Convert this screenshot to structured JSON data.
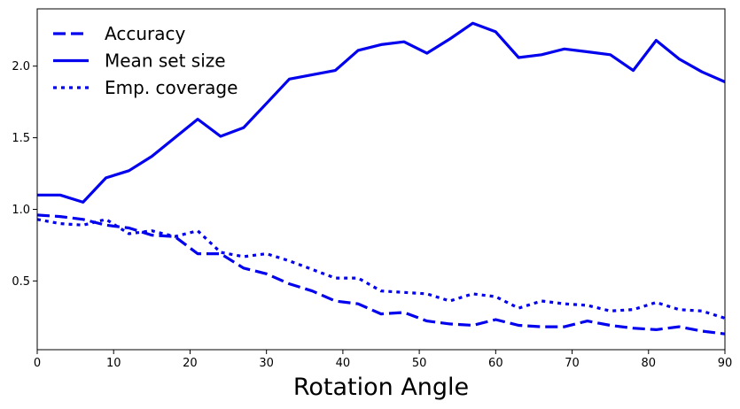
{
  "chart_data": {
    "type": "line",
    "xlabel": "Rotation Angle",
    "ylabel": "",
    "xlim": [
      0,
      90
    ],
    "ylim": [
      0.02,
      2.4
    ],
    "x_ticks": [
      0,
      10,
      20,
      30,
      40,
      50,
      60,
      70,
      80,
      90
    ],
    "y_ticks": [
      0.5,
      1.0,
      1.5,
      2.0
    ],
    "grid": false,
    "legend_position": "top-left",
    "color": "#0000ee",
    "x": [
      0,
      3,
      6,
      9,
      12,
      15,
      18,
      21,
      24,
      27,
      30,
      33,
      36,
      39,
      42,
      45,
      48,
      51,
      54,
      57,
      60,
      63,
      66,
      69,
      72,
      75,
      78,
      81,
      84,
      87,
      90
    ],
    "series": [
      {
        "name": "Accuracy",
        "style": "dashed",
        "values": [
          0.96,
          0.95,
          0.93,
          0.89,
          0.87,
          0.82,
          0.81,
          0.69,
          0.69,
          0.59,
          0.55,
          0.48,
          0.43,
          0.36,
          0.34,
          0.27,
          0.28,
          0.22,
          0.2,
          0.19,
          0.23,
          0.19,
          0.18,
          0.18,
          0.22,
          0.19,
          0.17,
          0.16,
          0.18,
          0.15,
          0.13
        ]
      },
      {
        "name": "Mean set size",
        "style": "solid",
        "values": [
          1.1,
          1.1,
          1.05,
          1.22,
          1.27,
          1.37,
          1.5,
          1.63,
          1.51,
          1.57,
          1.74,
          1.91,
          1.94,
          1.97,
          2.11,
          2.15,
          2.17,
          2.09,
          2.19,
          2.3,
          2.24,
          2.06,
          2.08,
          2.12,
          2.1,
          2.08,
          1.97,
          2.18,
          2.05,
          1.96,
          1.89
        ]
      },
      {
        "name": "Emp. coverage",
        "style": "dotted",
        "values": [
          0.93,
          0.9,
          0.89,
          0.93,
          0.83,
          0.85,
          0.81,
          0.85,
          0.7,
          0.67,
          0.69,
          0.64,
          0.58,
          0.52,
          0.52,
          0.43,
          0.42,
          0.41,
          0.36,
          0.41,
          0.39,
          0.31,
          0.36,
          0.34,
          0.33,
          0.29,
          0.3,
          0.35,
          0.3,
          0.29,
          0.24
        ]
      }
    ]
  }
}
